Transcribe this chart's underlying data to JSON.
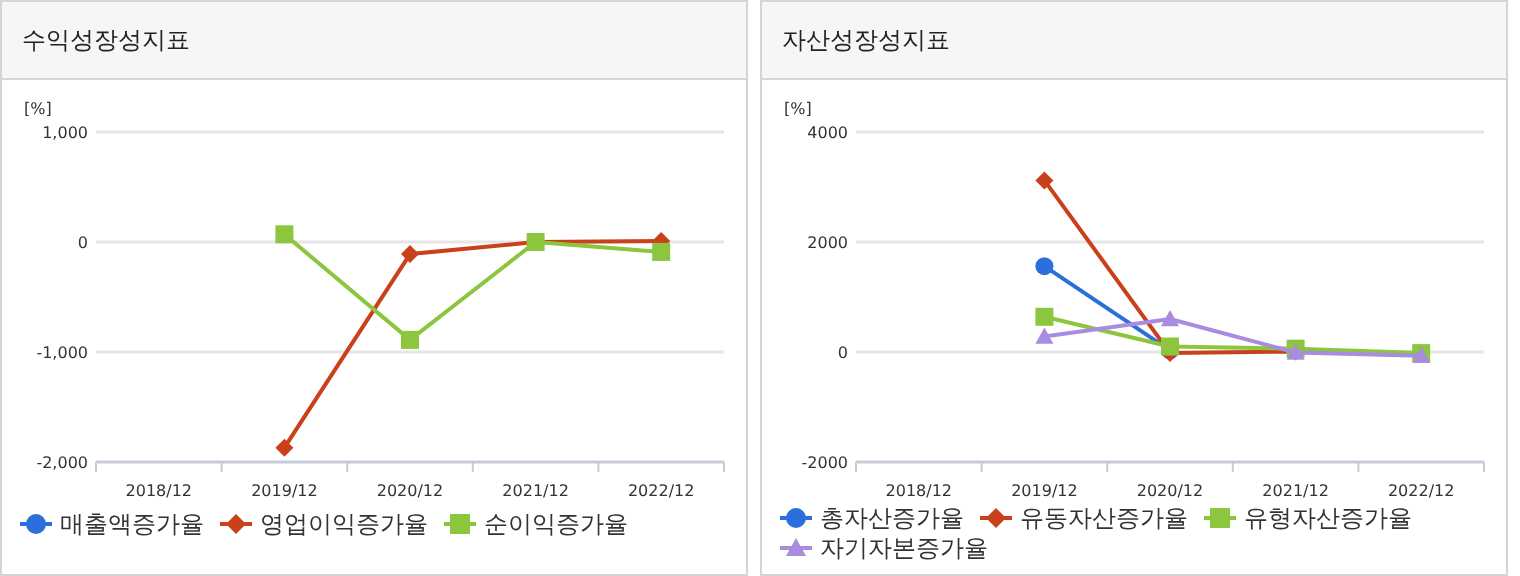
{
  "chart_data": [
    {
      "type": "line",
      "title": "수익성장성지표",
      "ylabel": "[%]",
      "categories": [
        "2018/12",
        "2019/12",
        "2020/12",
        "2021/12",
        "2022/12"
      ],
      "ylim": [
        -2000,
        1000
      ],
      "yticks": [
        {
          "value": -2000,
          "label": "-2,000"
        },
        {
          "value": -1000,
          "label": "-1,000"
        },
        0,
        {
          "value": 1000,
          "label": "1,000"
        }
      ],
      "grid": "y",
      "legend": "bottom",
      "series": [
        {
          "name": "매출액증가율",
          "color": "#2a6fdb",
          "marker": "circle",
          "values": [
            null,
            null,
            null,
            null,
            null
          ]
        },
        {
          "name": "영업이익증가율",
          "color": "#c9411a",
          "marker": "diamond",
          "values": [
            null,
            -1870,
            -110,
            0,
            10
          ]
        },
        {
          "name": "순이익증가율",
          "color": "#8cc63f",
          "marker": "square",
          "values": [
            null,
            70,
            -890,
            0,
            -90
          ]
        }
      ]
    },
    {
      "type": "line",
      "title": "자산성장성지표",
      "ylabel": "[%]",
      "categories": [
        "2018/12",
        "2019/12",
        "2020/12",
        "2021/12",
        "2022/12"
      ],
      "ylim": [
        -2000,
        4000
      ],
      "yticks": [
        -2000,
        0,
        2000,
        4000
      ],
      "grid": "y",
      "legend": "bottom",
      "series": [
        {
          "name": "총자산증가율",
          "color": "#2a6fdb",
          "marker": "circle",
          "values": [
            null,
            1560,
            30,
            null,
            null
          ]
        },
        {
          "name": "유동자산증가율",
          "color": "#c9411a",
          "marker": "diamond",
          "values": [
            null,
            3120,
            -20,
            10,
            -30
          ]
        },
        {
          "name": "유형자산증가율",
          "color": "#8cc63f",
          "marker": "square",
          "values": [
            null,
            640,
            100,
            60,
            -20
          ]
        },
        {
          "name": "자기자본증가율",
          "color": "#a98be0",
          "marker": "triangle",
          "values": [
            null,
            280,
            600,
            -10,
            -70
          ]
        }
      ]
    }
  ]
}
